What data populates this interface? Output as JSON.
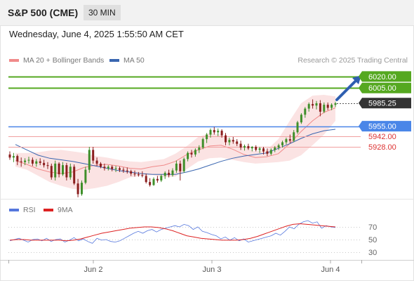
{
  "header": {
    "symbol": "S&P 500 (CME)",
    "interval": "30 MIN"
  },
  "datetime": "Wednesday, June 4, 2025 1:55:50 AM CET",
  "legend": {
    "bollinger": {
      "label": "MA 20 + Bollinger Bands",
      "color": "#f08a8a"
    },
    "ma50": {
      "label": "MA 50",
      "color": "#3a66b0"
    }
  },
  "credit": "Research © 2025 Trading Central",
  "rsi_legend": {
    "rsi": {
      "label": "RSI",
      "color": "#5577dd"
    },
    "ma9": {
      "label": "9MA",
      "color": "#dd2222"
    }
  },
  "chart_data": [
    {
      "type": "candlestick",
      "title": "",
      "x_ticks": [
        "Jun 2",
        "Jun 3",
        "Jun 4"
      ],
      "levels": [
        {
          "label": "6020.00",
          "value": 6020,
          "color": "#55a820",
          "style": "badge"
        },
        {
          "label": "6005.00",
          "value": 6005,
          "color": "#55a820",
          "style": "badge"
        },
        {
          "label": "5985.25",
          "value": 5985.25,
          "color": "#333333",
          "style": "last"
        },
        {
          "label": "5955.00",
          "value": 5955,
          "color": "#4a86e8",
          "style": "badge"
        },
        {
          "label": "5942.00",
          "value": 5942,
          "color": "#dd3333",
          "style": "text"
        },
        {
          "label": "5928.00",
          "value": 5928,
          "color": "#dd3333",
          "style": "text"
        }
      ],
      "series": [
        {
          "type": "ohlc",
          "values": [
            [
              5918,
              5922,
              5911,
              5914
            ],
            [
              5914,
              5920,
              5908,
              5916
            ],
            [
              5916,
              5918,
              5904,
              5909
            ],
            [
              5909,
              5914,
              5902,
              5908
            ],
            [
              5908,
              5913,
              5904,
              5910
            ],
            [
              5910,
              5915,
              5906,
              5911
            ],
            [
              5911,
              5914,
              5903,
              5906
            ],
            [
              5906,
              5912,
              5902,
              5909
            ],
            [
              5909,
              5913,
              5904,
              5907
            ],
            [
              5907,
              5911,
              5901,
              5904
            ],
            [
              5904,
              5908,
              5899,
              5903
            ],
            [
              5903,
              5906,
              5885,
              5888
            ],
            [
              5888,
              5910,
              5884,
              5906
            ],
            [
              5906,
              5908,
              5888,
              5892
            ],
            [
              5892,
              5908,
              5890,
              5904
            ],
            [
              5904,
              5907,
              5884,
              5888
            ],
            [
              5888,
              5906,
              5885,
              5902
            ],
            [
              5902,
              5905,
              5878,
              5880
            ],
            [
              5880,
              5886,
              5862,
              5866
            ],
            [
              5866,
              5884,
              5864,
              5881
            ],
            [
              5881,
              5902,
              5879,
              5898
            ],
            [
              5898,
              5928,
              5894,
              5924
            ],
            [
              5924,
              5928,
              5906,
              5910
            ],
            [
              5910,
              5914,
              5903,
              5906
            ],
            [
              5906,
              5908,
              5900,
              5902
            ],
            [
              5902,
              5906,
              5897,
              5900
            ],
            [
              5900,
              5904,
              5897,
              5902
            ],
            [
              5902,
              5904,
              5896,
              5899
            ],
            [
              5899,
              5903,
              5895,
              5900
            ],
            [
              5900,
              5902,
              5895,
              5898
            ],
            [
              5898,
              5901,
              5894,
              5897
            ],
            [
              5897,
              5901,
              5893,
              5896
            ],
            [
              5896,
              5898,
              5890,
              5893
            ],
            [
              5893,
              5897,
              5889,
              5892
            ],
            [
              5892,
              5895,
              5889,
              5891
            ],
            [
              5891,
              5896,
              5888,
              5890
            ],
            [
              5890,
              5893,
              5880,
              5882
            ],
            [
              5882,
              5887,
              5876,
              5878
            ],
            [
              5878,
              5888,
              5877,
              5886
            ],
            [
              5886,
              5890,
              5881,
              5884
            ],
            [
              5884,
              5892,
              5882,
              5890
            ],
            [
              5890,
              5896,
              5886,
              5894
            ],
            [
              5894,
              5898,
              5888,
              5891
            ],
            [
              5891,
              5900,
              5889,
              5897
            ],
            [
              5897,
              5910,
              5894,
              5906
            ],
            [
              5906,
              5910,
              5884,
              5896
            ],
            [
              5896,
              5914,
              5894,
              5912
            ],
            [
              5912,
              5922,
              5909,
              5920
            ],
            [
              5920,
              5924,
              5914,
              5918
            ],
            [
              5918,
              5926,
              5915,
              5924
            ],
            [
              5924,
              5930,
              5920,
              5927
            ],
            [
              5927,
              5940,
              5925,
              5938
            ],
            [
              5938,
              5946,
              5933,
              5944
            ],
            [
              5944,
              5952,
              5940,
              5950
            ],
            [
              5950,
              5954,
              5944,
              5947
            ],
            [
              5947,
              5952,
              5942,
              5949
            ],
            [
              5949,
              5951,
              5940,
              5943
            ],
            [
              5943,
              5946,
              5930,
              5934
            ],
            [
              5934,
              5940,
              5930,
              5937
            ],
            [
              5937,
              5941,
              5932,
              5935
            ],
            [
              5935,
              5938,
              5929,
              5932
            ],
            [
              5932,
              5936,
              5924,
              5927
            ],
            [
              5927,
              5931,
              5923,
              5929
            ],
            [
              5929,
              5932,
              5924,
              5926
            ],
            [
              5926,
              5929,
              5922,
              5928
            ],
            [
              5928,
              5930,
              5922,
              5924
            ],
            [
              5924,
              5928,
              5920,
              5926
            ],
            [
              5926,
              5928,
              5918,
              5922
            ],
            [
              5922,
              5926,
              5916,
              5919
            ],
            [
              5919,
              5926,
              5917,
              5924
            ],
            [
              5924,
              5929,
              5921,
              5927
            ],
            [
              5927,
              5932,
              5924,
              5930
            ],
            [
              5930,
              5936,
              5927,
              5934
            ],
            [
              5934,
              5940,
              5931,
              5938
            ],
            [
              5938,
              5944,
              5933,
              5936
            ],
            [
              5936,
              5950,
              5934,
              5947
            ],
            [
              5947,
              5962,
              5945,
              5960
            ],
            [
              5960,
              5972,
              5958,
              5970
            ],
            [
              5970,
              5980,
              5966,
              5978
            ],
            [
              5978,
              5986,
              5974,
              5984
            ],
            [
              5984,
              5990,
              5978,
              5982
            ],
            [
              5982,
              5988,
              5977,
              5985
            ],
            [
              5985,
              5989,
              5968,
              5974
            ],
            [
              5974,
              5986,
              5972,
              5983
            ],
            [
              5983,
              5986,
              5976,
              5979
            ],
            [
              5979,
              5985,
              5976,
              5983
            ],
            [
              5983,
              5987,
              5980,
              5985
            ]
          ]
        },
        {
          "name": "MA 20",
          "type": "line",
          "values": [
            5910,
            5905,
            5899,
            5895,
            5893,
            5895,
            5901,
            5904,
            5905,
            5903,
            5900,
            5899,
            5902,
            5904,
            5909,
            5918,
            5924,
            5929,
            5930,
            5925,
            5918,
            5914,
            5915,
            5919,
            5932,
            5948,
            5962,
            5973,
            5979
          ]
        },
        {
          "name": "Bollinger Bands",
          "type": "band",
          "upper": [
            5920,
            5920,
            5921,
            5923,
            5924,
            5922,
            5920,
            5916,
            5914,
            5911,
            5909,
            5908,
            5910,
            5912,
            5919,
            5929,
            5941,
            5946,
            5944,
            5937,
            5928,
            5922,
            5924,
            5938,
            5962,
            5985,
            5995,
            5996,
            5994
          ],
          "lower": [
            5902,
            5898,
            5890,
            5882,
            5877,
            5873,
            5872,
            5874,
            5877,
            5882,
            5888,
            5890,
            5891,
            5888,
            5889,
            5899,
            5909,
            5913,
            5914,
            5911,
            5908,
            5906,
            5907,
            5908,
            5910,
            5917,
            5930,
            5944,
            5962
          ]
        },
        {
          "name": "MA 50",
          "type": "line",
          "values": [
            5931,
            5924,
            5917,
            5913,
            5911,
            5909,
            5906,
            5903,
            5900,
            5897,
            5895,
            5893,
            5892,
            5892,
            5892,
            5895,
            5899,
            5904,
            5909,
            5913,
            5916,
            5918,
            5920,
            5926,
            5932,
            5939,
            5945,
            5949,
            5951
          ]
        }
      ]
    },
    {
      "type": "line",
      "title": "",
      "ylim": [
        30,
        70
      ],
      "y_ticks": [
        70,
        50,
        30
      ],
      "series": [
        {
          "name": "RSI",
          "values": [
            48,
            50,
            52,
            49,
            46,
            50,
            51,
            48,
            52,
            47,
            50,
            51,
            46,
            49,
            53,
            48,
            51,
            47,
            44,
            52,
            49,
            50,
            47,
            46,
            48,
            52,
            56,
            60,
            63,
            60,
            64,
            66,
            62,
            66,
            68,
            70,
            72,
            70,
            74,
            72,
            66,
            70,
            63,
            61,
            58,
            56,
            51,
            54,
            49,
            53,
            48,
            51,
            46,
            48,
            50,
            52,
            54,
            56,
            60,
            57,
            63,
            70,
            67,
            74,
            78,
            80,
            76,
            78,
            68,
            72,
            70,
            69
          ]
        },
        {
          "name": "9MA",
          "values": [
            49,
            50,
            50,
            49,
            49,
            49,
            49,
            49,
            48,
            49,
            51,
            54,
            57,
            60,
            62,
            64,
            66,
            68,
            69,
            70,
            70,
            69,
            67,
            64,
            60,
            56,
            54,
            52,
            51,
            50,
            49,
            49,
            49,
            50,
            52,
            55,
            59,
            63,
            67,
            71,
            74,
            75,
            74,
            73,
            72,
            71,
            70
          ]
        }
      ]
    }
  ]
}
